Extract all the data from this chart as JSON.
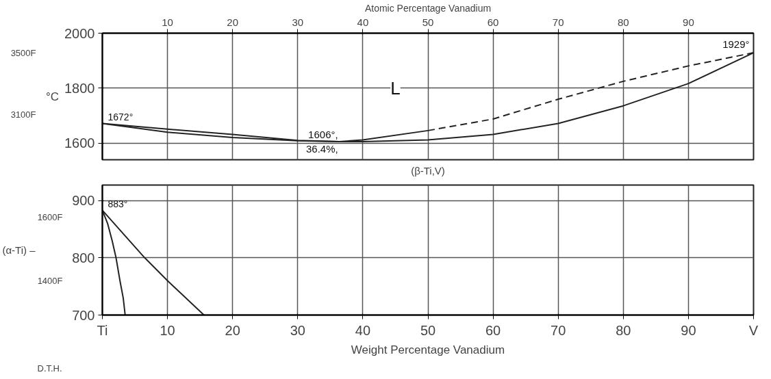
{
  "chart_data": [
    {
      "type": "line",
      "ylabel": "°C",
      "x2label": "Atomic Percentage Vanadium",
      "xlim": [
        0,
        100
      ],
      "x2lim": [
        0,
        100
      ],
      "xticks": [
        10,
        20,
        30,
        40,
        50,
        60,
        70,
        80,
        90
      ],
      "x2ticks": [
        10,
        20,
        30,
        40,
        50,
        60,
        70,
        80,
        90
      ],
      "ylim": [
        1540,
        2000
      ],
      "yticks": [
        1600,
        1800,
        2000
      ],
      "y2lim": [
        2804,
        3632
      ],
      "y2ticks": [
        {
          "value": 3100,
          "label": "3100F"
        },
        {
          "value": 3500,
          "label": "3500F"
        }
      ],
      "tick_labels": "y",
      "grid": true,
      "series": [
        {
          "color": "#222222",
          "line_style": "solid",
          "x": [
            0,
            10,
            20,
            30,
            36.4,
            40,
            50
          ],
          "values": [
            1672,
            1651,
            1632,
            1610,
            1606,
            1612,
            1646
          ]
        },
        {
          "color": "#222222",
          "line_style": "dashed",
          "x": [
            50,
            60,
            70,
            80,
            90,
            100
          ],
          "values": [
            1646,
            1688,
            1760,
            1825,
            1881,
            1929
          ]
        },
        {
          "color": "#222222",
          "line_style": "solid",
          "x": [
            0,
            10,
            20,
            30,
            36.4,
            40,
            50,
            60,
            70,
            80,
            90,
            100
          ],
          "values": [
            1672,
            1640,
            1621,
            1609,
            1606,
            1606,
            1612,
            1632,
            1672,
            1736,
            1817,
            1929
          ]
        }
      ],
      "annotations": [
        {
          "text": "1672°",
          "x": 0,
          "y": 1672
        },
        {
          "text": "1606°,\n36.4%,",
          "x": 36.4,
          "y": 1606
        },
        {
          "text": "1929°",
          "x": 100,
          "y": 1929
        },
        {
          "text": "L",
          "x": 45,
          "y": 1800
        },
        "(β-Ti,V)"
      ]
    },
    {
      "type": "line",
      "xlabel": "Weight Percentage Vanadium",
      "xlim": [
        0,
        100
      ],
      "xticks": [
        {
          "value": 0,
          "label": "Ti"
        },
        10,
        20,
        30,
        40,
        50,
        60,
        70,
        80,
        90,
        {
          "value": 100,
          "label": "V"
        }
      ],
      "ylim": [
        700,
        927
      ],
      "yticks": [
        700,
        800,
        900
      ],
      "y2lim": [
        1292,
        1701
      ],
      "y2ticks": [
        {
          "value": 1400,
          "label": "1400F"
        },
        {
          "value": 1600,
          "label": "1600F"
        }
      ],
      "grid": true,
      "series": [
        {
          "color": "#222222",
          "line_style": "solid",
          "x": [
            0,
            0.8,
            1.5,
            2.1,
            2.7,
            3.2,
            3.5
          ],
          "values": [
            883,
            860,
            830,
            800,
            760,
            730,
            700
          ]
        },
        {
          "color": "#222222",
          "line_style": "solid",
          "x": [
            0,
            6.5,
            10,
            15.6
          ],
          "values": [
            883,
            800,
            760,
            700
          ]
        }
      ],
      "annotations": [
        {
          "text": "883°",
          "x": 0,
          "y": 883
        },
        "(α-Ti) –",
        "D.T.H."
      ]
    }
  ]
}
